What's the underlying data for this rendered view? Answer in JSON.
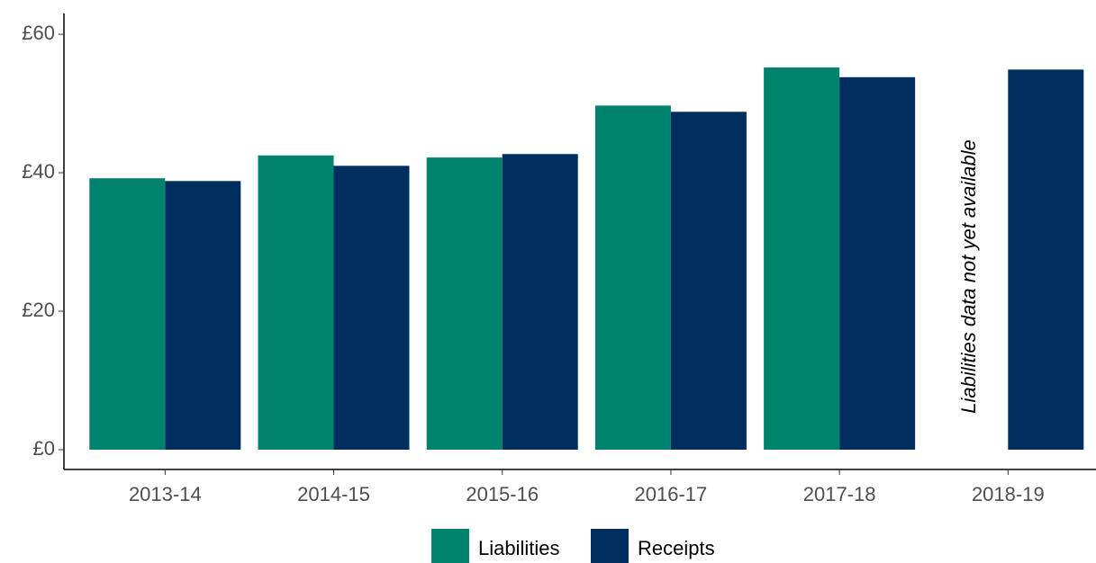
{
  "chart_data": {
    "type": "bar",
    "categories": [
      "2013-14",
      "2014-15",
      "2015-16",
      "2016-17",
      "2017-18",
      "2018-19"
    ],
    "series": [
      {
        "name": "Liabilities",
        "color": "#00836e",
        "values": [
          39.2,
          42.5,
          42.2,
          49.7,
          55.2,
          null
        ]
      },
      {
        "name": "Receipts",
        "color": "#002f5f",
        "values": [
          38.8,
          41.0,
          42.7,
          48.8,
          53.8,
          54.9
        ]
      }
    ],
    "ylim": [
      -2.86,
      63
    ],
    "yticks": [
      {
        "value": 0,
        "label": "£0"
      },
      {
        "value": 20,
        "label": "£20"
      },
      {
        "value": 40,
        "label": "£40"
      },
      {
        "value": 60,
        "label": "£60"
      }
    ],
    "annotations": [
      "Liabilities data not yet available"
    ],
    "legend": "bottom"
  }
}
